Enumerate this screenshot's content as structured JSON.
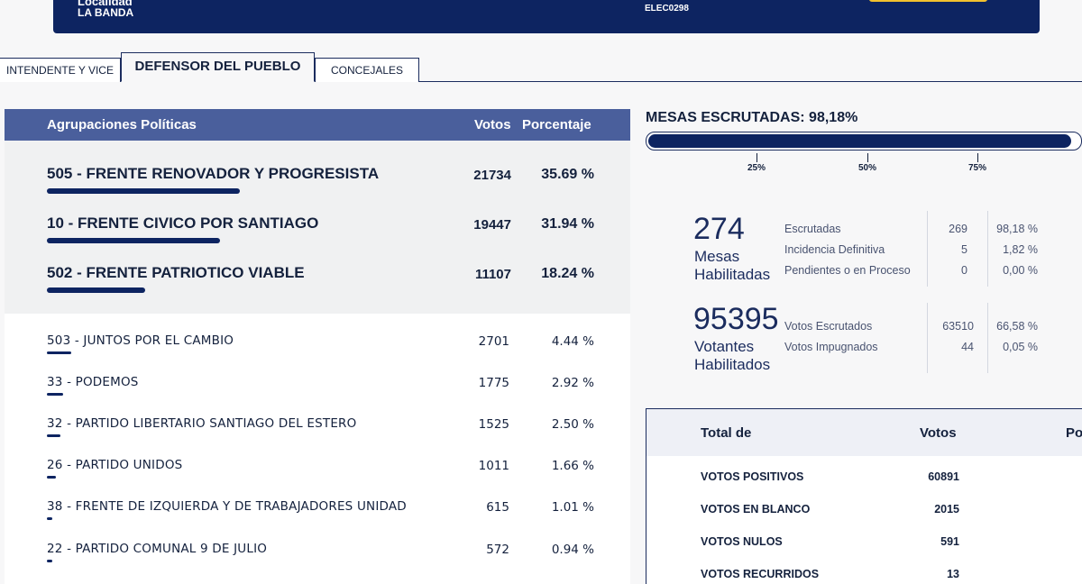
{
  "header": {
    "location_title": "Localidad",
    "location": "LA BANDA",
    "code": "ELEC0298"
  },
  "tabs": [
    {
      "label": "INTENDENTE Y VICE",
      "active": false
    },
    {
      "label": "DEFENSOR DEL PUEBLO",
      "active": true
    },
    {
      "label": "CONCEJALES",
      "active": false
    }
  ],
  "results": {
    "col_party": "Agrupaciones Políticas",
    "col_votes": "Votos",
    "col_pct": "Porcentaje",
    "top": [
      {
        "name": "505 - FRENTE RENOVADOR Y PROGRESISTA",
        "votes": "21734",
        "pct": "35.69 %",
        "share": 35.69
      },
      {
        "name": "10 - FRENTE CIVICO POR SANTIAGO",
        "votes": "19447",
        "pct": "31.94 %",
        "share": 31.94
      },
      {
        "name": "502 - FRENTE PATRIOTICO VIABLE",
        "votes": "11107",
        "pct": "18.24 %",
        "share": 18.24
      }
    ],
    "others": [
      {
        "name": "503 - JUNTOS POR EL CAMBIO",
        "votes": "2701",
        "pct": "4.44 %",
        "share": 4.44
      },
      {
        "name": "33 - PODEMOS",
        "votes": "1775",
        "pct": "2.92 %",
        "share": 2.92
      },
      {
        "name": "32 - PARTIDO LIBERTARIO SANTIAGO DEL ESTERO",
        "votes": "1525",
        "pct": "2.50 %",
        "share": 2.5
      },
      {
        "name": "26 - PARTIDO UNIDOS",
        "votes": "1011",
        "pct": "1.66 %",
        "share": 1.66
      },
      {
        "name": "38 - FRENTE DE IZQUIERDA Y DE TRABAJADORES UNIDAD",
        "votes": "615",
        "pct": "1.01 %",
        "share": 1.01
      },
      {
        "name": "22 - PARTIDO COMUNAL 9 DE JULIO",
        "votes": "572",
        "pct": "0.94 %",
        "share": 0.94
      }
    ]
  },
  "mesas": {
    "title": "MESAS ESCRUTADAS: 98,18%",
    "progress": 98.18,
    "ticks": [
      "25%",
      "50%",
      "75%"
    ],
    "habilitadas_count": "274",
    "habilitadas_label_1": "Mesas",
    "habilitadas_label_2": "Habilitadas",
    "rows": [
      {
        "label": "Escrutadas",
        "count": "269",
        "pct": "98,18 %"
      },
      {
        "label": "Incidencia Definitiva",
        "count": "5",
        "pct": "1,82 %"
      },
      {
        "label": "Pendientes o en Proceso",
        "count": "0",
        "pct": "0,00 %"
      }
    ]
  },
  "votantes": {
    "count": "95395",
    "label_1": "Votantes",
    "label_2": "Habilitados",
    "rows": [
      {
        "label": "Votos Escrutados",
        "count": "63510",
        "pct": "66,58 %"
      },
      {
        "label": "Votos Impugnados",
        "count": "44",
        "pct": "0,05 %"
      }
    ]
  },
  "totals": {
    "col_label": "Total de",
    "col_votes": "Votos",
    "col_pct": "Po",
    "rows": [
      {
        "label": "VOTOS POSITIVOS",
        "votes": "60891"
      },
      {
        "label": "VOTOS EN BLANCO",
        "votes": "2015"
      },
      {
        "label": "VOTOS NULOS",
        "votes": "591"
      },
      {
        "label": "VOTOS RECURRIDOS",
        "votes": "13"
      }
    ]
  },
  "colors": {
    "navy": "#0d2461",
    "header_band": "#4a5f9c",
    "accent_yellow": "#f2c12e"
  }
}
